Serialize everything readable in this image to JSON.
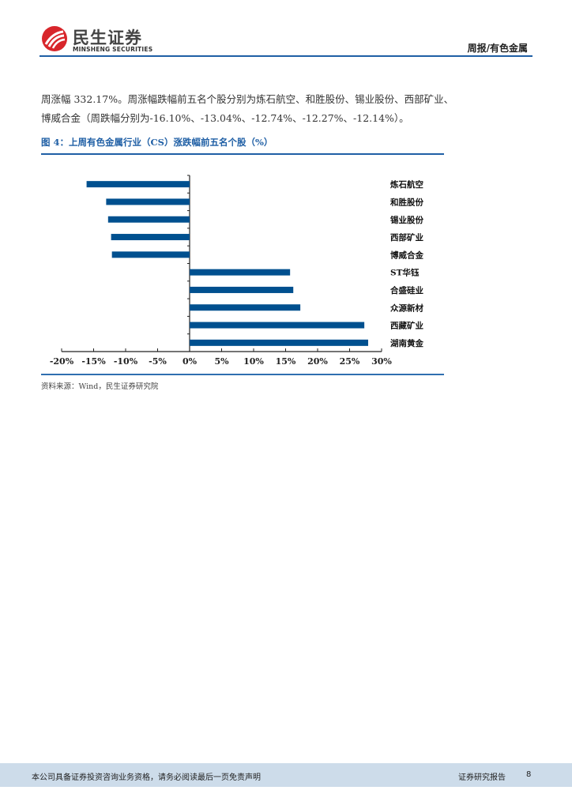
{
  "header": {
    "logo_cn": "民生证券",
    "logo_en": "MINSHENG SECURITIES",
    "section": "周报/有色金属",
    "accent_color": "#1f5fa5"
  },
  "body": {
    "line1": "周涨幅 332.17%。周涨幅跌幅前五名个股分别为炼石航空、和胜股份、锡业股份、西部矿业、",
    "line2": "博威合金（周跌幅分别为-16.10%、-13.04%、-12.74%、-12.27%、-12.14%）。"
  },
  "figure": {
    "title": "图 4：上周有色金属行业（CS）涨跌幅前五名个股（%）",
    "source": "资料来源：Wind，民生证券研究院"
  },
  "chart_data": {
    "type": "bar",
    "orientation": "horizontal",
    "title": "上周有色金属行业（CS）涨跌幅前五名个股（%）",
    "categories": [
      "炼石航空",
      "和胜股份",
      "锡业股份",
      "西部矿业",
      "博威合金",
      "ST华钰",
      "合盛硅业",
      "众源新材",
      "西藏矿业",
      "湖南黄金"
    ],
    "values": [
      -16.1,
      -13.04,
      -12.74,
      -12.27,
      -12.14,
      15.7,
      16.2,
      17.3,
      27.3,
      27.9
    ],
    "xlabel": "",
    "ylabel": "",
    "xlim": [
      -20,
      30
    ],
    "x_ticks": [
      "-20%",
      "-15%",
      "-10%",
      "-5%",
      "0%",
      "5%",
      "10%",
      "15%",
      "20%",
      "25%",
      "30%"
    ],
    "grid": false,
    "legend": "none",
    "bar_color": "#00508f"
  },
  "footer": {
    "disclaimer": "本公司具备证券投资咨询业务资格，请务必阅读最后一页免责声明",
    "doc_type": "证券研究报告",
    "page": "8"
  }
}
